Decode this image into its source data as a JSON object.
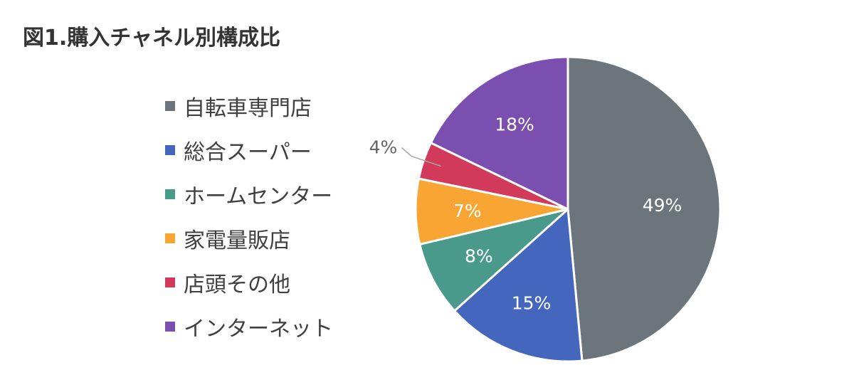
{
  "title": "図1.購入チャネル別構成比",
  "chart_data": {
    "type": "pie",
    "title": "図1.購入チャネル別構成比",
    "legend_position": "left",
    "unit": "%",
    "slices": [
      {
        "label": "自転車専門店",
        "value": 49,
        "display": "49%",
        "color": "#6B757B"
      },
      {
        "label": "総合スーパー",
        "value": 15,
        "display": "15%",
        "color": "#4467BD"
      },
      {
        "label": "ホームセンター",
        "value": 8,
        "display": "8%",
        "color": "#4A9A8C"
      },
      {
        "label": "家電量販店",
        "value": 7,
        "display": "7%",
        "color": "#F8A533"
      },
      {
        "label": "店頭その他",
        "value": 4,
        "display": "4%",
        "color": "#D23A5C"
      },
      {
        "label": "インターネット",
        "value": 18,
        "display": "18%",
        "color": "#7B4FB0"
      }
    ]
  }
}
